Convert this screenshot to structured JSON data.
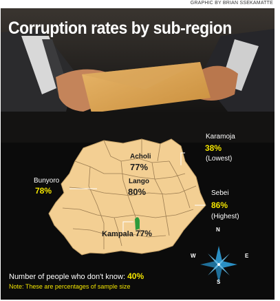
{
  "credit": "GRAPHIC BY BRIAN SSEKAMATTE",
  "title": "Corruption rates by sub-region",
  "regions": {
    "acholi": {
      "name": "Acholi",
      "rate": "77%"
    },
    "lango": {
      "name": "Lango",
      "rate": "80%"
    },
    "karamoja": {
      "name": "Karamoja",
      "rate": "38%",
      "note": "(Lowest)"
    },
    "bunyoro": {
      "name": "Bunyoro",
      "rate": "78%"
    },
    "sebei": {
      "name": "Sebei",
      "rate": "86%",
      "note": "(Highest)"
    },
    "kampala": {
      "name": "Kampala",
      "rate": "77%"
    }
  },
  "footer": {
    "dont_know_label": "Number of people who don't know:",
    "dont_know_value": "40%",
    "note": "Note: These are percentages of sample size"
  },
  "compass": {
    "n": "N",
    "s": "S",
    "e": "E",
    "w": "W"
  },
  "colors": {
    "map_fill": "#f3cf93",
    "highlight": "#f3e500",
    "compass": "#2a8fc4",
    "background": "#0b0b0b"
  }
}
